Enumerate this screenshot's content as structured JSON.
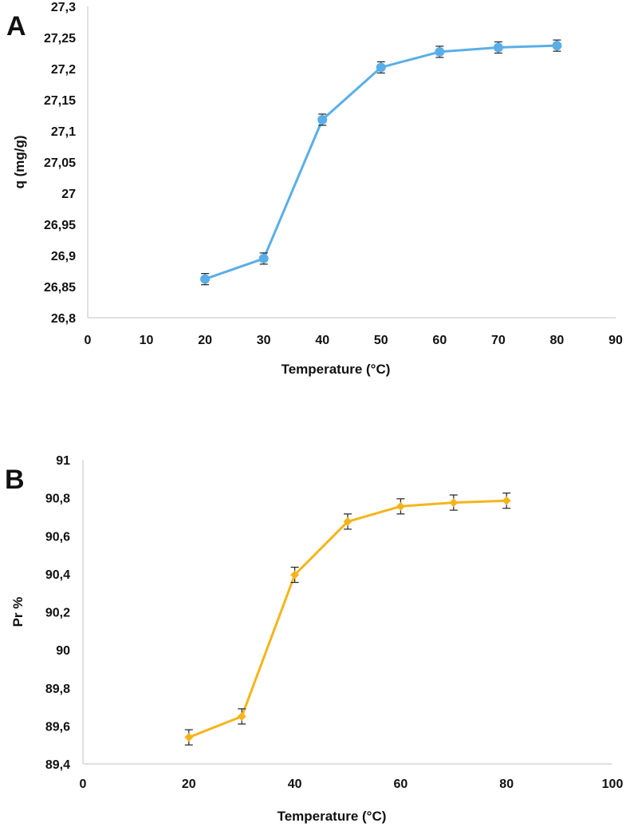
{
  "chart_data": [
    {
      "type": "line",
      "panel_label": "A",
      "title": "",
      "xlabel": "Temperature (°C)",
      "ylabel": "q (mg/g)",
      "xlim": [
        0,
        90
      ],
      "ylim": [
        26.8,
        27.3
      ],
      "x_ticks": [
        0,
        10,
        20,
        30,
        40,
        50,
        60,
        70,
        80,
        90
      ],
      "x_tick_labels": [
        "0",
        "10",
        "20",
        "30",
        "40",
        "50",
        "60",
        "70",
        "80",
        "90"
      ],
      "y_ticks": [
        26.8,
        26.85,
        26.9,
        26.95,
        27.0,
        27.05,
        27.1,
        27.15,
        27.2,
        27.25,
        27.3
      ],
      "y_tick_labels": [
        "26,8",
        "26,85",
        "26,9",
        "26,95",
        "27",
        "27,05",
        "27,1",
        "27,15",
        "27,2",
        "27,25",
        "27,3"
      ],
      "grid": false,
      "marker": "circle",
      "color": "#5aaee8",
      "series": [
        {
          "x": [
            20,
            30,
            40,
            50,
            60,
            70,
            80
          ],
          "y": [
            26.862,
            26.895,
            27.118,
            27.202,
            27.227,
            27.234,
            27.237
          ],
          "error": [
            0.009,
            0.009,
            0.009,
            0.009,
            0.009,
            0.009,
            0.009
          ]
        }
      ]
    },
    {
      "type": "line",
      "panel_label": "B",
      "title": "",
      "xlabel": "Temperature (°C)",
      "ylabel": "Pr %",
      "xlim": [
        0,
        100
      ],
      "ylim": [
        89.4,
        91.0
      ],
      "x_ticks": [
        0,
        20,
        40,
        60,
        80,
        100
      ],
      "x_tick_labels": [
        "0",
        "20",
        "40",
        "60",
        "80",
        "100"
      ],
      "y_ticks": [
        89.4,
        89.6,
        89.8,
        90.0,
        90.2,
        90.4,
        90.6,
        90.8,
        91.0
      ],
      "y_tick_labels": [
        "89,4",
        "89,6",
        "89,8",
        "90",
        "90,2",
        "90,4",
        "90,6",
        "90,8",
        "91"
      ],
      "grid": false,
      "marker": "diamond",
      "color": "#f5b41c",
      "series": [
        {
          "x": [
            20,
            30,
            40,
            50,
            60,
            70,
            80
          ],
          "y": [
            89.54,
            89.65,
            90.395,
            90.675,
            90.755,
            90.775,
            90.785
          ],
          "error": [
            0.04,
            0.04,
            0.04,
            0.04,
            0.04,
            0.04,
            0.04
          ]
        }
      ]
    }
  ]
}
